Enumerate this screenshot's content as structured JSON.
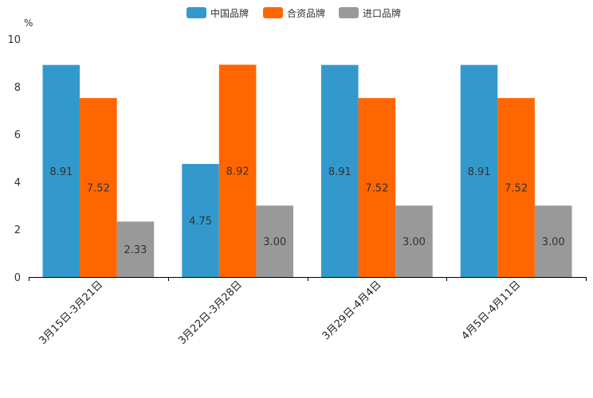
{
  "chart_data": {
    "type": "bar",
    "title": "",
    "ylabel": "%",
    "xlabel": "",
    "ylim": [
      0,
      10
    ],
    "yticks": [
      0,
      2,
      4,
      6,
      8,
      10
    ],
    "legend_position": "top-center",
    "categories": [
      "3月15日-3月21日",
      "3月22日-3月28日",
      "3月29日-4月4日",
      "4月5日-4月11日"
    ],
    "series": [
      {
        "name": "中国品牌",
        "color": "#3399CC",
        "values": [
          8.91,
          4.75,
          8.91,
          8.91
        ],
        "labels": [
          "8.91",
          "4.75",
          "8.91",
          "8.91"
        ]
      },
      {
        "name": "合资品牌",
        "color": "#FF6600",
        "values": [
          7.52,
          8.92,
          7.52,
          7.52
        ],
        "labels": [
          "7.52",
          "8.92",
          "7.52",
          "7.52"
        ]
      },
      {
        "name": "进口品牌",
        "color": "#999999",
        "values": [
          2.33,
          3.0,
          3.0,
          3.0
        ],
        "labels": [
          "2.33",
          "3.00",
          "3.00",
          "3.00"
        ]
      }
    ]
  }
}
